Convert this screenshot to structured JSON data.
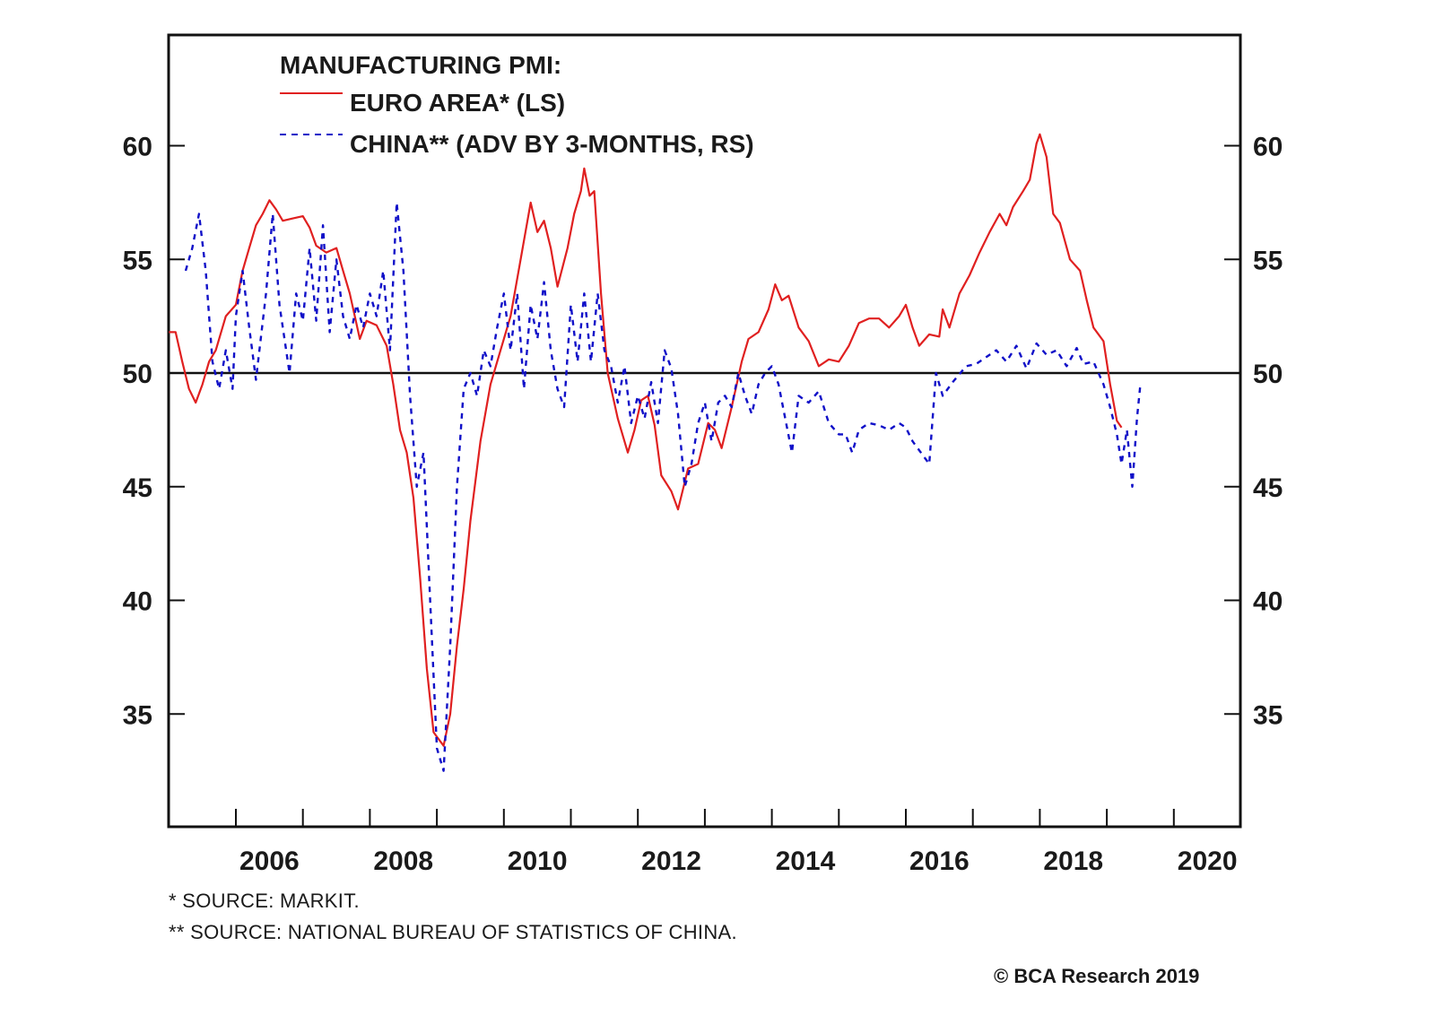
{
  "chart_data": {
    "type": "line",
    "title": "MANUFACTURING PMI:",
    "xlabel": "",
    "ylabel_left": "",
    "ylabel_right": "",
    "x_range": [
      2005.0,
      2021.0
    ],
    "ylim_left": [
      30,
      65
    ],
    "ylim_right": [
      30,
      65
    ],
    "x_tick_labels": [
      "2006",
      "2008",
      "2010",
      "2012",
      "2014",
      "2016",
      "2018",
      "2020"
    ],
    "x_tick_label_values": [
      2006.5,
      2008.5,
      2010.5,
      2012.5,
      2014.5,
      2016.5,
      2018.5,
      2020.5
    ],
    "x_minor_ticks": [
      2006,
      2007,
      2008,
      2009,
      2010,
      2011,
      2012,
      2013,
      2014,
      2015,
      2016,
      2017,
      2018,
      2019,
      2020
    ],
    "y_ticks_left": [
      35,
      40,
      45,
      50,
      55,
      60
    ],
    "y_ticks_right": [
      35,
      40,
      45,
      50,
      55,
      60
    ],
    "reference_line": 50,
    "grid": false,
    "legend_position": "top-left",
    "series": [
      {
        "name": "EURO AREA* (LS)",
        "axis": "left",
        "color": "#e02020",
        "style": "solid",
        "points": [
          [
            2005.0,
            51.8
          ],
          [
            2005.1,
            51.8
          ],
          [
            2005.2,
            50.5
          ],
          [
            2005.3,
            49.3
          ],
          [
            2005.4,
            48.7
          ],
          [
            2005.5,
            49.5
          ],
          [
            2005.6,
            50.5
          ],
          [
            2005.7,
            51.0
          ],
          [
            2005.85,
            52.5
          ],
          [
            2006.0,
            53.0
          ],
          [
            2006.1,
            54.5
          ],
          [
            2006.2,
            55.5
          ],
          [
            2006.3,
            56.5
          ],
          [
            2006.4,
            57.0
          ],
          [
            2006.5,
            57.6
          ],
          [
            2006.6,
            57.2
          ],
          [
            2006.7,
            56.7
          ],
          [
            2006.85,
            56.8
          ],
          [
            2007.0,
            56.9
          ],
          [
            2007.1,
            56.4
          ],
          [
            2007.2,
            55.6
          ],
          [
            2007.35,
            55.3
          ],
          [
            2007.5,
            55.5
          ],
          [
            2007.6,
            54.5
          ],
          [
            2007.7,
            53.5
          ],
          [
            2007.85,
            51.5
          ],
          [
            2007.95,
            52.3
          ],
          [
            2008.1,
            52.1
          ],
          [
            2008.25,
            51.2
          ],
          [
            2008.35,
            49.5
          ],
          [
            2008.45,
            47.5
          ],
          [
            2008.55,
            46.5
          ],
          [
            2008.65,
            44.5
          ],
          [
            2008.75,
            41.0
          ],
          [
            2008.85,
            37.0
          ],
          [
            2008.95,
            34.2
          ],
          [
            2009.0,
            34.0
          ],
          [
            2009.1,
            33.6
          ],
          [
            2009.2,
            35.0
          ],
          [
            2009.3,
            38.0
          ],
          [
            2009.4,
            40.5
          ],
          [
            2009.5,
            43.5
          ],
          [
            2009.65,
            47.0
          ],
          [
            2009.8,
            49.5
          ],
          [
            2009.95,
            51.0
          ],
          [
            2010.1,
            52.5
          ],
          [
            2010.25,
            55.0
          ],
          [
            2010.4,
            57.5
          ],
          [
            2010.5,
            56.2
          ],
          [
            2010.6,
            56.7
          ],
          [
            2010.7,
            55.5
          ],
          [
            2010.8,
            53.8
          ],
          [
            2010.95,
            55.5
          ],
          [
            2011.05,
            57.0
          ],
          [
            2011.15,
            58.0
          ],
          [
            2011.2,
            59.0
          ],
          [
            2011.28,
            57.8
          ],
          [
            2011.35,
            58.0
          ],
          [
            2011.45,
            53.5
          ],
          [
            2011.55,
            50.0
          ],
          [
            2011.7,
            48.0
          ],
          [
            2011.85,
            46.5
          ],
          [
            2011.95,
            47.5
          ],
          [
            2012.05,
            48.8
          ],
          [
            2012.15,
            49.0
          ],
          [
            2012.25,
            47.7
          ],
          [
            2012.35,
            45.5
          ],
          [
            2012.5,
            44.8
          ],
          [
            2012.6,
            44.0
          ],
          [
            2012.75,
            45.8
          ],
          [
            2012.9,
            46.0
          ],
          [
            2013.05,
            47.8
          ],
          [
            2013.15,
            47.5
          ],
          [
            2013.25,
            46.7
          ],
          [
            2013.4,
            48.5
          ],
          [
            2013.55,
            50.5
          ],
          [
            2013.65,
            51.5
          ],
          [
            2013.8,
            51.8
          ],
          [
            2013.95,
            52.8
          ],
          [
            2014.05,
            53.9
          ],
          [
            2014.15,
            53.2
          ],
          [
            2014.25,
            53.4
          ],
          [
            2014.4,
            52.0
          ],
          [
            2014.55,
            51.4
          ],
          [
            2014.7,
            50.3
          ],
          [
            2014.85,
            50.6
          ],
          [
            2015.0,
            50.5
          ],
          [
            2015.15,
            51.2
          ],
          [
            2015.3,
            52.2
          ],
          [
            2015.45,
            52.4
          ],
          [
            2015.6,
            52.4
          ],
          [
            2015.75,
            52.0
          ],
          [
            2015.9,
            52.5
          ],
          [
            2016.0,
            53.0
          ],
          [
            2016.1,
            52.0
          ],
          [
            2016.2,
            51.2
          ],
          [
            2016.35,
            51.7
          ],
          [
            2016.5,
            51.6
          ],
          [
            2016.55,
            52.8
          ],
          [
            2016.65,
            52.0
          ],
          [
            2016.8,
            53.5
          ],
          [
            2016.95,
            54.3
          ],
          [
            2017.1,
            55.3
          ],
          [
            2017.25,
            56.2
          ],
          [
            2017.4,
            57.0
          ],
          [
            2017.5,
            56.5
          ],
          [
            2017.6,
            57.3
          ],
          [
            2017.75,
            58.0
          ],
          [
            2017.85,
            58.5
          ],
          [
            2017.95,
            60.1
          ],
          [
            2018.0,
            60.5
          ],
          [
            2018.1,
            59.5
          ],
          [
            2018.2,
            57.0
          ],
          [
            2018.3,
            56.6
          ],
          [
            2018.45,
            55.0
          ],
          [
            2018.6,
            54.5
          ],
          [
            2018.7,
            53.2
          ],
          [
            2018.8,
            52.0
          ],
          [
            2018.95,
            51.4
          ],
          [
            2019.05,
            49.5
          ],
          [
            2019.15,
            47.9
          ],
          [
            2019.22,
            47.6
          ]
        ]
      },
      {
        "name": "CHINA** (ADV BY 3-MONTHS, RS)",
        "axis": "right",
        "color": "#1010c8",
        "style": "dashed",
        "points": [
          [
            2005.25,
            54.5
          ],
          [
            2005.35,
            55.5
          ],
          [
            2005.45,
            57.0
          ],
          [
            2005.55,
            54.5
          ],
          [
            2005.65,
            50.5
          ],
          [
            2005.75,
            49.3
          ],
          [
            2005.85,
            51.0
          ],
          [
            2005.95,
            49.3
          ],
          [
            2006.0,
            52.5
          ],
          [
            2006.1,
            54.5
          ],
          [
            2006.2,
            52.0
          ],
          [
            2006.3,
            49.7
          ],
          [
            2006.45,
            53.5
          ],
          [
            2006.55,
            57.0
          ],
          [
            2006.65,
            53.0
          ],
          [
            2006.8,
            50.0
          ],
          [
            2006.9,
            53.5
          ],
          [
            2007.0,
            52.3
          ],
          [
            2007.1,
            55.5
          ],
          [
            2007.2,
            52.3
          ],
          [
            2007.3,
            56.5
          ],
          [
            2007.4,
            51.8
          ],
          [
            2007.5,
            55.0
          ],
          [
            2007.6,
            52.5
          ],
          [
            2007.7,
            51.5
          ],
          [
            2007.8,
            53.0
          ],
          [
            2007.9,
            52.0
          ],
          [
            2008.0,
            53.5
          ],
          [
            2008.1,
            52.5
          ],
          [
            2008.2,
            54.5
          ],
          [
            2008.3,
            51.0
          ],
          [
            2008.4,
            57.5
          ],
          [
            2008.5,
            54.5
          ],
          [
            2008.6,
            49.0
          ],
          [
            2008.7,
            45.0
          ],
          [
            2008.8,
            46.5
          ],
          [
            2008.9,
            40.0
          ],
          [
            2009.0,
            33.5
          ],
          [
            2009.1,
            32.5
          ],
          [
            2009.2,
            38.0
          ],
          [
            2009.3,
            45.0
          ],
          [
            2009.4,
            49.3
          ],
          [
            2009.5,
            50.0
          ],
          [
            2009.6,
            49.0
          ],
          [
            2009.7,
            51.0
          ],
          [
            2009.8,
            50.3
          ],
          [
            2009.9,
            52.0
          ],
          [
            2010.0,
            53.5
          ],
          [
            2010.1,
            51.0
          ],
          [
            2010.2,
            53.5
          ],
          [
            2010.3,
            49.3
          ],
          [
            2010.4,
            53.0
          ],
          [
            2010.5,
            51.5
          ],
          [
            2010.6,
            54.0
          ],
          [
            2010.7,
            51.0
          ],
          [
            2010.8,
            49.3
          ],
          [
            2010.9,
            48.5
          ],
          [
            2011.0,
            53.0
          ],
          [
            2011.1,
            50.5
          ],
          [
            2011.2,
            53.5
          ],
          [
            2011.3,
            50.5
          ],
          [
            2011.4,
            53.5
          ],
          [
            2011.5,
            51.0
          ],
          [
            2011.6,
            50.3
          ],
          [
            2011.7,
            48.7
          ],
          [
            2011.8,
            50.3
          ],
          [
            2011.9,
            47.8
          ],
          [
            2012.0,
            49.0
          ],
          [
            2012.1,
            48.0
          ],
          [
            2012.2,
            49.6
          ],
          [
            2012.3,
            47.8
          ],
          [
            2012.4,
            51.0
          ],
          [
            2012.5,
            50.2
          ],
          [
            2012.6,
            48.2
          ],
          [
            2012.7,
            45.0
          ],
          [
            2012.8,
            46.0
          ],
          [
            2012.9,
            47.8
          ],
          [
            2013.0,
            48.7
          ],
          [
            2013.1,
            47.0
          ],
          [
            2013.2,
            48.7
          ],
          [
            2013.3,
            49.0
          ],
          [
            2013.4,
            48.5
          ],
          [
            2013.5,
            50.0
          ],
          [
            2013.6,
            49.0
          ],
          [
            2013.7,
            48.2
          ],
          [
            2013.8,
            49.5
          ],
          [
            2013.9,
            50.0
          ],
          [
            2014.0,
            50.3
          ],
          [
            2014.1,
            49.5
          ],
          [
            2014.2,
            48.0
          ],
          [
            2014.3,
            46.5
          ],
          [
            2014.4,
            49.0
          ],
          [
            2014.55,
            48.7
          ],
          [
            2014.7,
            49.2
          ],
          [
            2014.85,
            47.8
          ],
          [
            2015.0,
            47.3
          ],
          [
            2015.1,
            47.3
          ],
          [
            2015.2,
            46.5
          ],
          [
            2015.3,
            47.5
          ],
          [
            2015.45,
            47.8
          ],
          [
            2015.6,
            47.7
          ],
          [
            2015.75,
            47.5
          ],
          [
            2015.9,
            47.8
          ],
          [
            2016.0,
            47.6
          ],
          [
            2016.1,
            47.0
          ],
          [
            2016.2,
            46.6
          ],
          [
            2016.35,
            46.0
          ],
          [
            2016.45,
            50.0
          ],
          [
            2016.55,
            49.0
          ],
          [
            2016.7,
            49.6
          ],
          [
            2016.9,
            50.3
          ],
          [
            2017.05,
            50.4
          ],
          [
            2017.2,
            50.7
          ],
          [
            2017.35,
            51.0
          ],
          [
            2017.5,
            50.5
          ],
          [
            2017.65,
            51.2
          ],
          [
            2017.8,
            50.2
          ],
          [
            2017.95,
            51.3
          ],
          [
            2018.1,
            50.8
          ],
          [
            2018.25,
            51.0
          ],
          [
            2018.4,
            50.3
          ],
          [
            2018.55,
            51.1
          ],
          [
            2018.65,
            50.4
          ],
          [
            2018.8,
            50.5
          ],
          [
            2018.95,
            49.5
          ],
          [
            2019.05,
            48.5
          ],
          [
            2019.15,
            47.3
          ],
          [
            2019.22,
            46.0
          ],
          [
            2019.3,
            47.5
          ],
          [
            2019.38,
            45.0
          ],
          [
            2019.45,
            48.0
          ],
          [
            2019.5,
            49.5
          ]
        ]
      }
    ]
  },
  "legend": {
    "title": "MANUFACTURING PMI:",
    "items": [
      {
        "label": "EURO AREA* (LS)",
        "color": "#e02020",
        "style": "solid"
      },
      {
        "label": "CHINA** (ADV BY 3-MONTHS, RS)",
        "color": "#1010c8",
        "style": "dashed"
      }
    ]
  },
  "footnotes": [
    "*  SOURCE: MARKIT.",
    "** SOURCE: NATIONAL BUREAU OF STATISTICS OF CHINA."
  ],
  "copyright": "© BCA Research 2019"
}
